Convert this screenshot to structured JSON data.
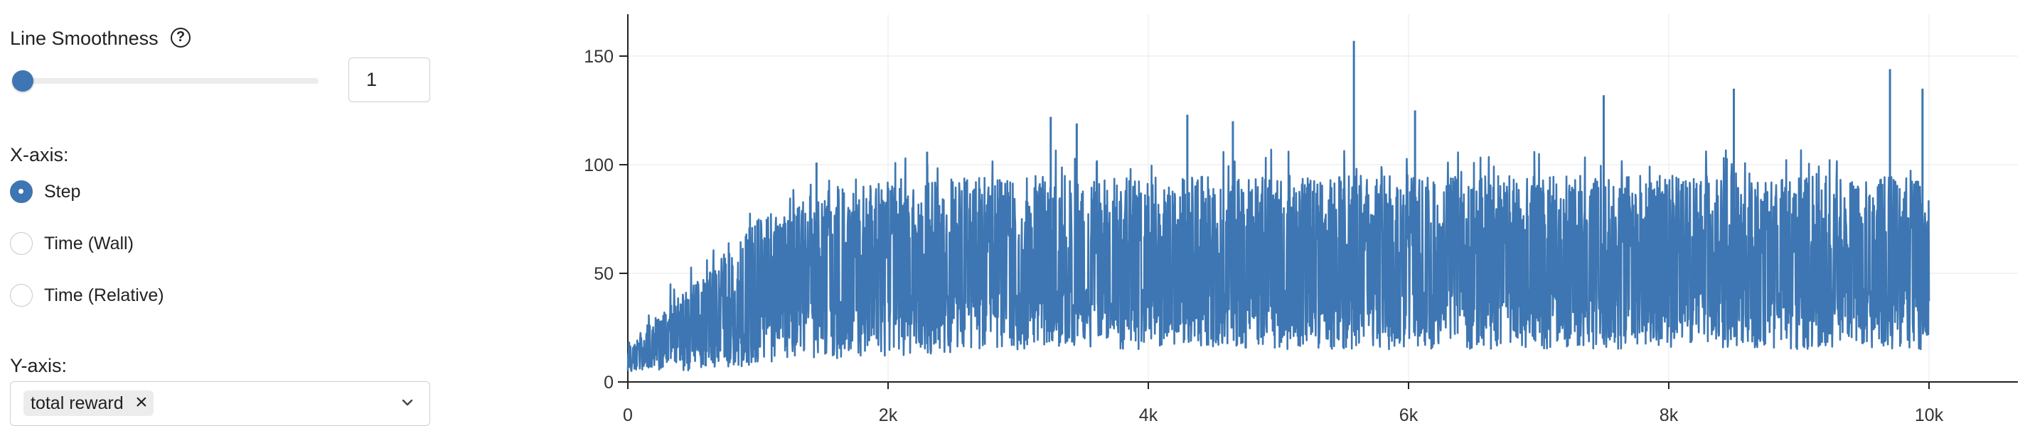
{
  "controls": {
    "smoothness_label": "Line Smoothness",
    "help_icon_text": "?",
    "smoothness_value": "1",
    "xaxis_label": "X-axis:",
    "xaxis_options": [
      "Step",
      "Time (Wall)",
      "Time (Relative)"
    ],
    "xaxis_selected": "Step",
    "yaxis_label": "Y-axis:",
    "yaxis_chip": "total reward",
    "chip_remove": "×"
  },
  "colors": {
    "accent": "#3e75b3",
    "series": "#3d76b2",
    "grid": "#ececec"
  },
  "chart_data": {
    "type": "line",
    "title": "",
    "xlabel": "",
    "ylabel": "",
    "xlim": [
      0,
      10000
    ],
    "ylim": [
      0,
      160
    ],
    "x_ticks": [
      0,
      2000,
      4000,
      6000,
      8000,
      10000
    ],
    "x_tick_labels": [
      "0",
      "2k",
      "4k",
      "6k",
      "8k",
      "10k"
    ],
    "y_ticks": [
      0,
      50,
      100,
      150
    ],
    "y_tick_labels": [
      "0",
      "50",
      "100",
      "150"
    ],
    "grid": true,
    "series": [
      {
        "name": "",
        "points": 10000,
        "trend": {
          "x": [
            0,
            500,
            1000,
            1500,
            2000,
            3000,
            4000,
            5000,
            6000,
            7000,
            8000,
            9000,
            10000
          ],
          "lower": [
            5,
            5,
            8,
            10,
            12,
            15,
            15,
            15,
            15,
            15,
            15,
            15,
            15
          ],
          "upper": [
            18,
            45,
            75,
            88,
            92,
            95,
            95,
            95,
            95,
            95,
            95,
            95,
            95
          ]
        },
        "peaks": [
          {
            "x": 1450,
            "y": 101
          },
          {
            "x": 2300,
            "y": 106
          },
          {
            "x": 3250,
            "y": 122
          },
          {
            "x": 3450,
            "y": 119
          },
          {
            "x": 4300,
            "y": 123
          },
          {
            "x": 4650,
            "y": 120
          },
          {
            "x": 5580,
            "y": 157
          },
          {
            "x": 6050,
            "y": 125
          },
          {
            "x": 7500,
            "y": 132
          },
          {
            "x": 8500,
            "y": 135
          },
          {
            "x": 9700,
            "y": 144
          },
          {
            "x": 9950,
            "y": 135
          }
        ]
      }
    ]
  }
}
